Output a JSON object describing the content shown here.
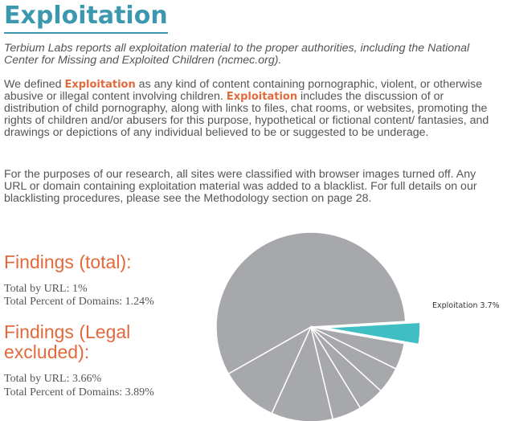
{
  "title": "Exploitation",
  "intro": "Terbium Labs reports all exploitation material to the proper authorities, including the National Center for Missing and Exploited Children (ncmec.org).",
  "para1": {
    "part1": "We defined ",
    "term1": "Exploitation",
    "part2": " as any kind of content containing pornographic, violent, or otherwise abusive or illegal content involving children. ",
    "term2": "Exploitation",
    "part3": " includes the discussion of or distribution of child pornography, along with links to files, chat rooms, or websites, promoting the rights of children and/or abusers for this purpose, hypothetical or fictional content/ fantasies, and drawings or depictions of any individual believed to be or suggested to be underage."
  },
  "para2": "For the purposes of our research, all sites were classified with browser images turned off. Any URL or domain containing exploitation material was added to a blacklist. For full details on our blacklisting procedures, please see the Methodology section on page 28.",
  "findings_total": {
    "heading": "Findings (total):",
    "by_url": "Total by URL: 1%",
    "by_domain": "Total Percent of Domains: 1.24%"
  },
  "findings_legal": {
    "heading": "Findings (Legal excluded):",
    "by_url": "Total by URL: 3.66%",
    "by_domain": "Total Percent of Domains: 3.89%"
  },
  "chart_data": {
    "type": "pie",
    "slices": [
      {
        "label": "Exploitation 3.7%",
        "value": 3.7,
        "color": "#3fbfc4",
        "exploded": true
      },
      {
        "label": "",
        "value": 57.3,
        "color": "#a7a8ab"
      },
      {
        "label": "",
        "value": 10.0,
        "color": "#a7a8ab"
      },
      {
        "label": "",
        "value": 10.5,
        "color": "#a7a8ab"
      },
      {
        "label": "",
        "value": 5.0,
        "color": "#a7a8ab"
      },
      {
        "label": "",
        "value": 4.5,
        "color": "#a7a8ab"
      },
      {
        "label": "",
        "value": 4.5,
        "color": "#a7a8ab"
      },
      {
        "label": "",
        "value": 4.5,
        "color": "#a7a8ab"
      }
    ]
  },
  "colors": {
    "title": "#3c98ae",
    "accent": "#e2693c",
    "text": "#555555"
  }
}
